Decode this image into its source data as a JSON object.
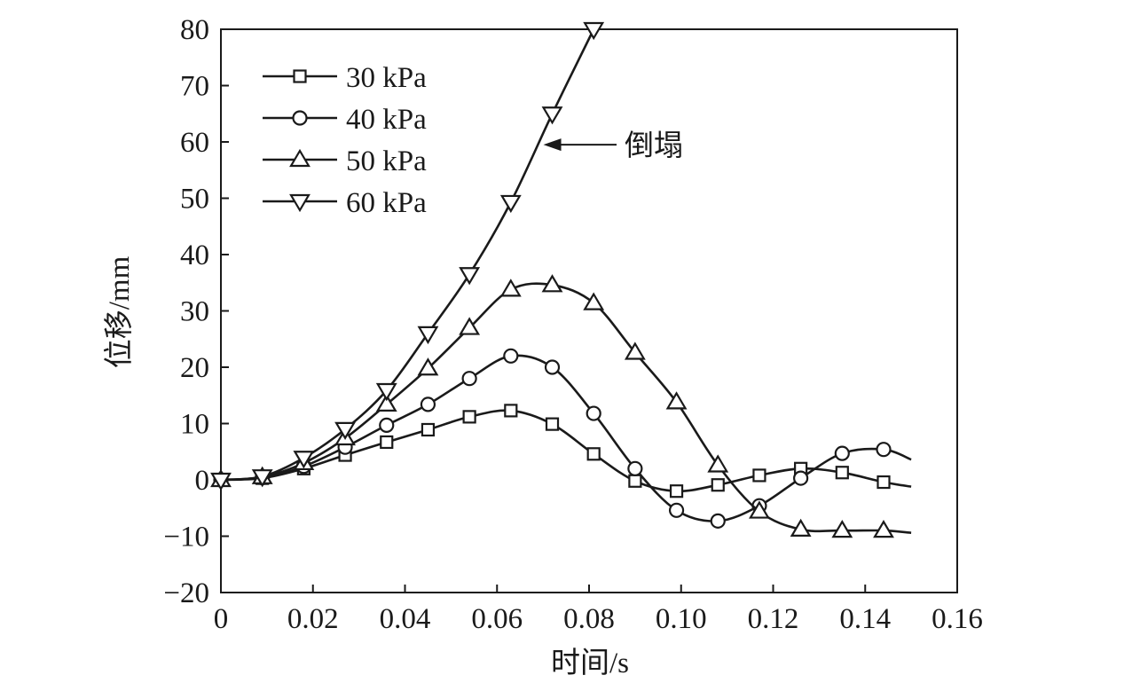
{
  "chart_data": {
    "type": "line",
    "title": "",
    "xlabel": "时间/s",
    "ylabel": "位移/mm",
    "xlim": [
      0,
      0.16
    ],
    "ylim": [
      -20,
      80
    ],
    "xticks": [
      0,
      0.02,
      0.04,
      0.06,
      0.08,
      0.1,
      0.12,
      0.14,
      0.16
    ],
    "xtick_labels": [
      "0",
      "0.02",
      "0.04",
      "0.06",
      "0.08",
      "0.10",
      "0.12",
      "0.14",
      "0.16"
    ],
    "yticks": [
      -20,
      -10,
      0,
      10,
      20,
      30,
      40,
      50,
      60,
      70,
      80
    ],
    "ytick_labels": [
      "−20",
      "−10",
      "0",
      "10",
      "20",
      "30",
      "40",
      "50",
      "60",
      "70",
      "80"
    ],
    "grid": false,
    "legend": "top-left",
    "series": [
      {
        "name": "30 kPa",
        "marker": "square",
        "x": [
          0,
          0.009,
          0.018,
          0.027,
          0.036,
          0.045,
          0.054,
          0.063,
          0.072,
          0.081,
          0.09,
          0.099,
          0.108,
          0.117,
          0.126,
          0.135,
          0.144,
          0.15
        ],
        "y": [
          0,
          0.3,
          2.0,
          4.4,
          6.7,
          8.9,
          11.2,
          12.3,
          9.9,
          4.6,
          -0.2,
          -2.0,
          -0.9,
          0.8,
          2.0,
          1.3,
          -0.4,
          -1.2
        ]
      },
      {
        "name": "40 kPa",
        "marker": "circle",
        "x": [
          0,
          0.009,
          0.018,
          0.027,
          0.036,
          0.045,
          0.054,
          0.063,
          0.072,
          0.081,
          0.09,
          0.099,
          0.108,
          0.117,
          0.126,
          0.135,
          0.144,
          0.15
        ],
        "y": [
          0,
          0.4,
          2.4,
          5.8,
          9.7,
          13.4,
          18.0,
          22.0,
          20.0,
          11.8,
          2.0,
          -5.4,
          -7.3,
          -4.6,
          0.3,
          4.7,
          5.4,
          3.6
        ]
      },
      {
        "name": "50 kPa",
        "marker": "triangle-up",
        "x": [
          0,
          0.009,
          0.018,
          0.027,
          0.036,
          0.045,
          0.054,
          0.063,
          0.072,
          0.081,
          0.09,
          0.099,
          0.108,
          0.117,
          0.126,
          0.135,
          0.144,
          0.15
        ],
        "y": [
          0,
          0.5,
          3.0,
          7.4,
          13.4,
          19.8,
          27.0,
          33.8,
          34.6,
          31.4,
          22.6,
          13.8,
          2.6,
          -5.6,
          -8.8,
          -9.0,
          -9.0,
          -9.4
        ]
      },
      {
        "name": "60 kPa",
        "marker": "triangle-down",
        "x": [
          0,
          0.009,
          0.018,
          0.027,
          0.036,
          0.045,
          0.054,
          0.063,
          0.072,
          0.081
        ],
        "y": [
          0,
          0.6,
          3.9,
          9.0,
          15.9,
          26.0,
          36.5,
          49.3,
          65.0,
          80.0
        ]
      }
    ],
    "annotations": [
      {
        "text": "倒塌",
        "series": "60 kPa",
        "x": 0.0695,
        "y": 59.5
      }
    ]
  }
}
